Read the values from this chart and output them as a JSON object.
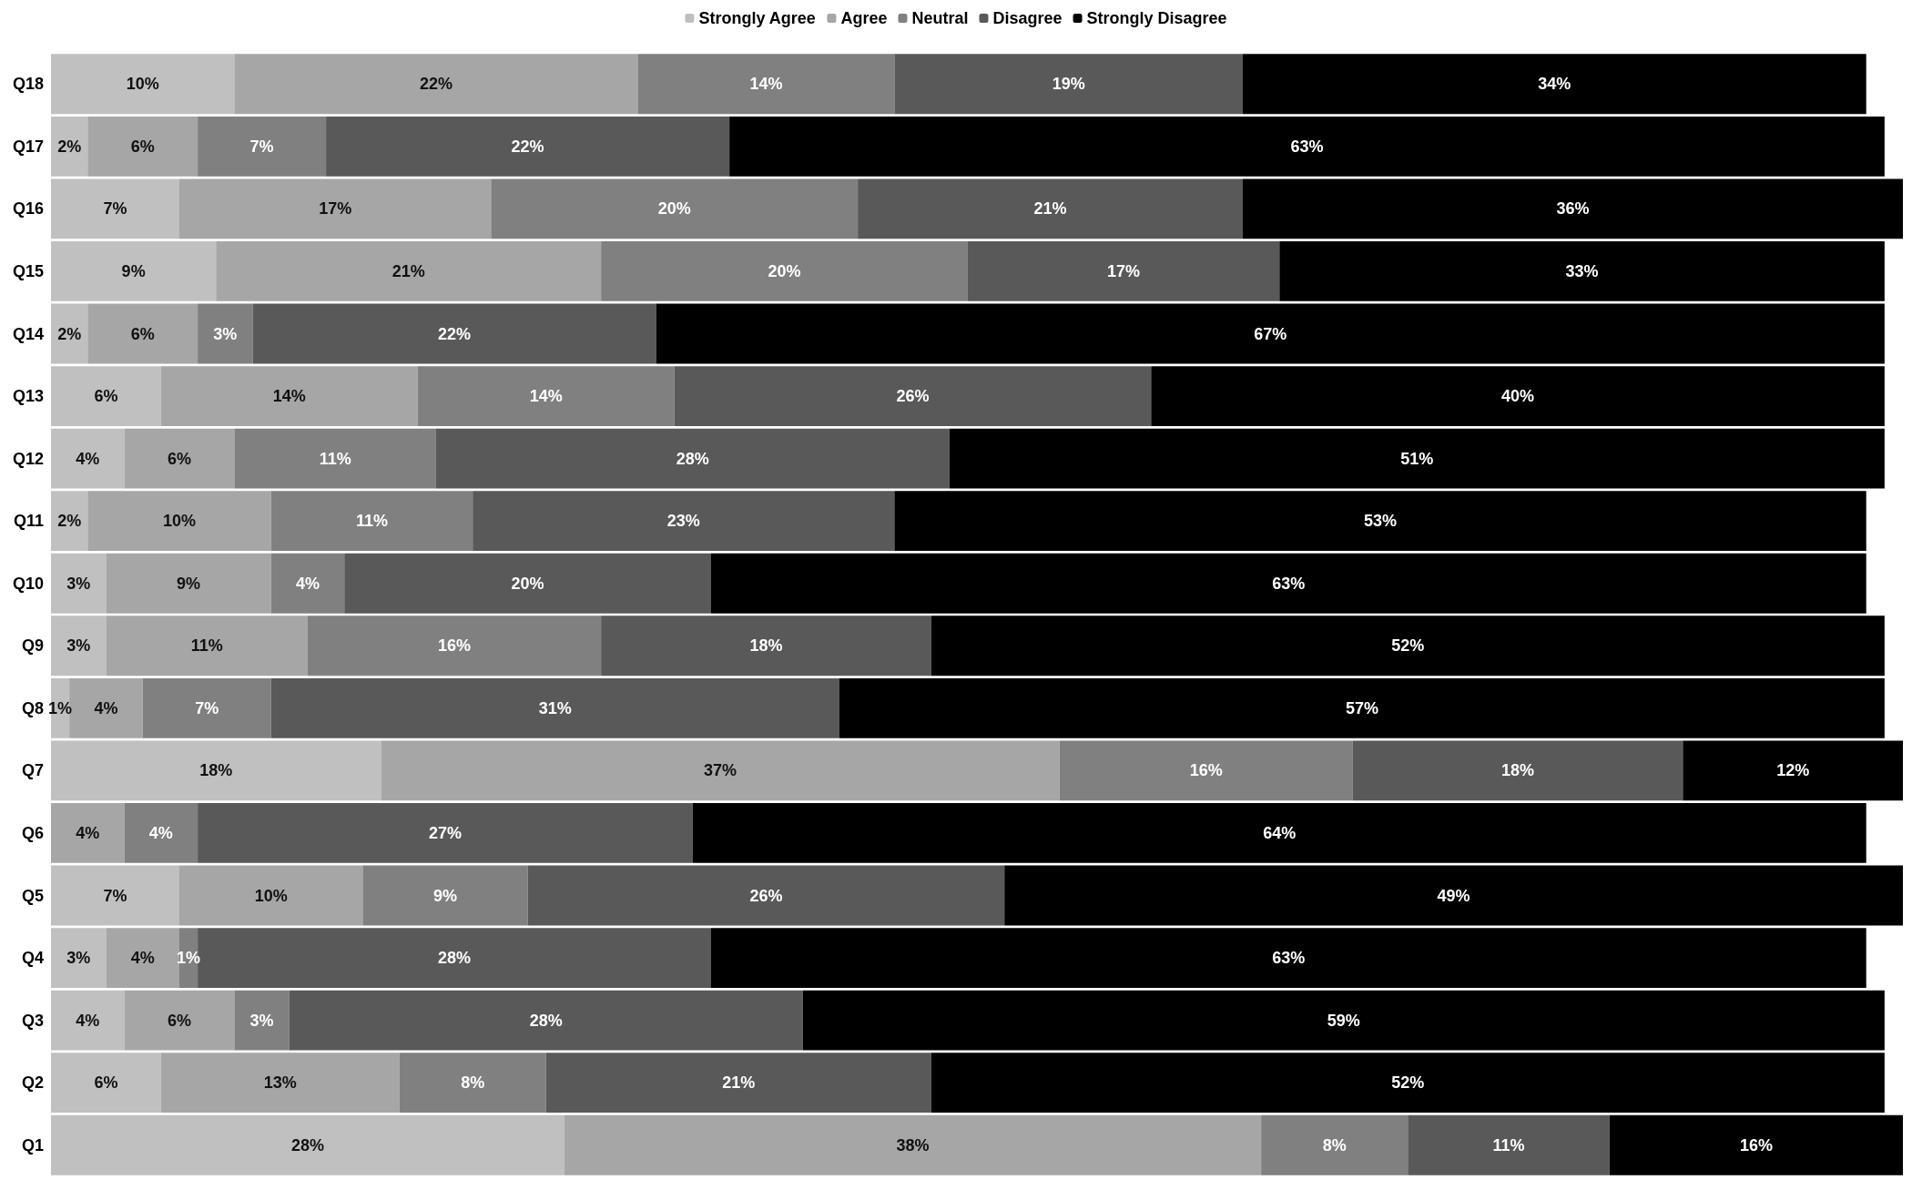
{
  "chart_data": {
    "type": "bar",
    "orientation": "horizontal",
    "stacked": true,
    "legend": "top",
    "tick_labels": "y",
    "categories": [
      "Q18",
      "Q17",
      "Q16",
      "Q15",
      "Q14",
      "Q13",
      "Q12",
      "Q11",
      "Q10",
      "Q9",
      "Q8",
      "Q7",
      "Q6",
      "Q5",
      "Q4",
      "Q3",
      "Q2",
      "Q1"
    ],
    "series": [
      {
        "name": "Strongly Agree",
        "color": "#c0c0c0",
        "values": [
          10,
          2,
          7,
          9,
          2,
          6,
          4,
          2,
          3,
          3,
          1,
          18,
          null,
          7,
          3,
          4,
          6,
          28
        ],
        "value_labels": [
          "10%",
          "2%",
          "7%",
          "9%",
          "2%",
          "6%",
          "4%",
          "2%",
          "3%",
          "3%",
          "1%",
          "18%",
          null,
          "7%",
          "3%",
          "4%",
          "6%",
          "28%"
        ]
      },
      {
        "name": "Agree",
        "color": "#a6a6a6",
        "values": [
          22,
          6,
          17,
          21,
          6,
          14,
          6,
          10,
          9,
          11,
          4,
          37,
          4,
          10,
          4,
          6,
          13,
          38
        ],
        "value_labels": [
          "22%",
          "6%",
          "17%",
          "21%",
          "6%",
          "14%",
          "6%",
          "10%",
          "9%",
          "11%",
          "4%",
          "37%",
          "4%",
          "10%",
          "4%",
          "6%",
          "13%",
          "38%"
        ]
      },
      {
        "name": "Neutral",
        "color": "#808080",
        "values": [
          14,
          7,
          20,
          20,
          3,
          14,
          11,
          11,
          4,
          16,
          7,
          16,
          4,
          9,
          1,
          3,
          8,
          8
        ],
        "value_labels": [
          "14%",
          "7%",
          "20%",
          "20%",
          "3%",
          "14%",
          "11%",
          "11%",
          "4%",
          "16%",
          "7%",
          "16%",
          "4%",
          "9%",
          "1%",
          "3%",
          "8%",
          "8%"
        ]
      },
      {
        "name": "Disagree",
        "color": "#595959",
        "values": [
          19,
          22,
          21,
          17,
          22,
          26,
          28,
          23,
          20,
          18,
          31,
          18,
          27,
          26,
          28,
          28,
          21,
          11
        ],
        "value_labels": [
          "19%",
          "22%",
          "21%",
          "17%",
          "22%",
          "26%",
          "28%",
          "23%",
          "20%",
          "18%",
          "31%",
          "18%",
          "27%",
          "26%",
          "28%",
          "28%",
          "21%",
          "11%"
        ]
      },
      {
        "name": "Strongly Disagree",
        "color": "#000000",
        "values": [
          34,
          63,
          36,
          33,
          67,
          40,
          51,
          53,
          63,
          52,
          57,
          12,
          64,
          49,
          63,
          59,
          52,
          16
        ],
        "value_labels": [
          "34%",
          "63%",
          "36%",
          "33%",
          "67%",
          "40%",
          "51%",
          "53%",
          "63%",
          "52%",
          "57%",
          "12%",
          "64%",
          "49%",
          "63%",
          "59%",
          "52%",
          "16%"
        ]
      }
    ]
  }
}
